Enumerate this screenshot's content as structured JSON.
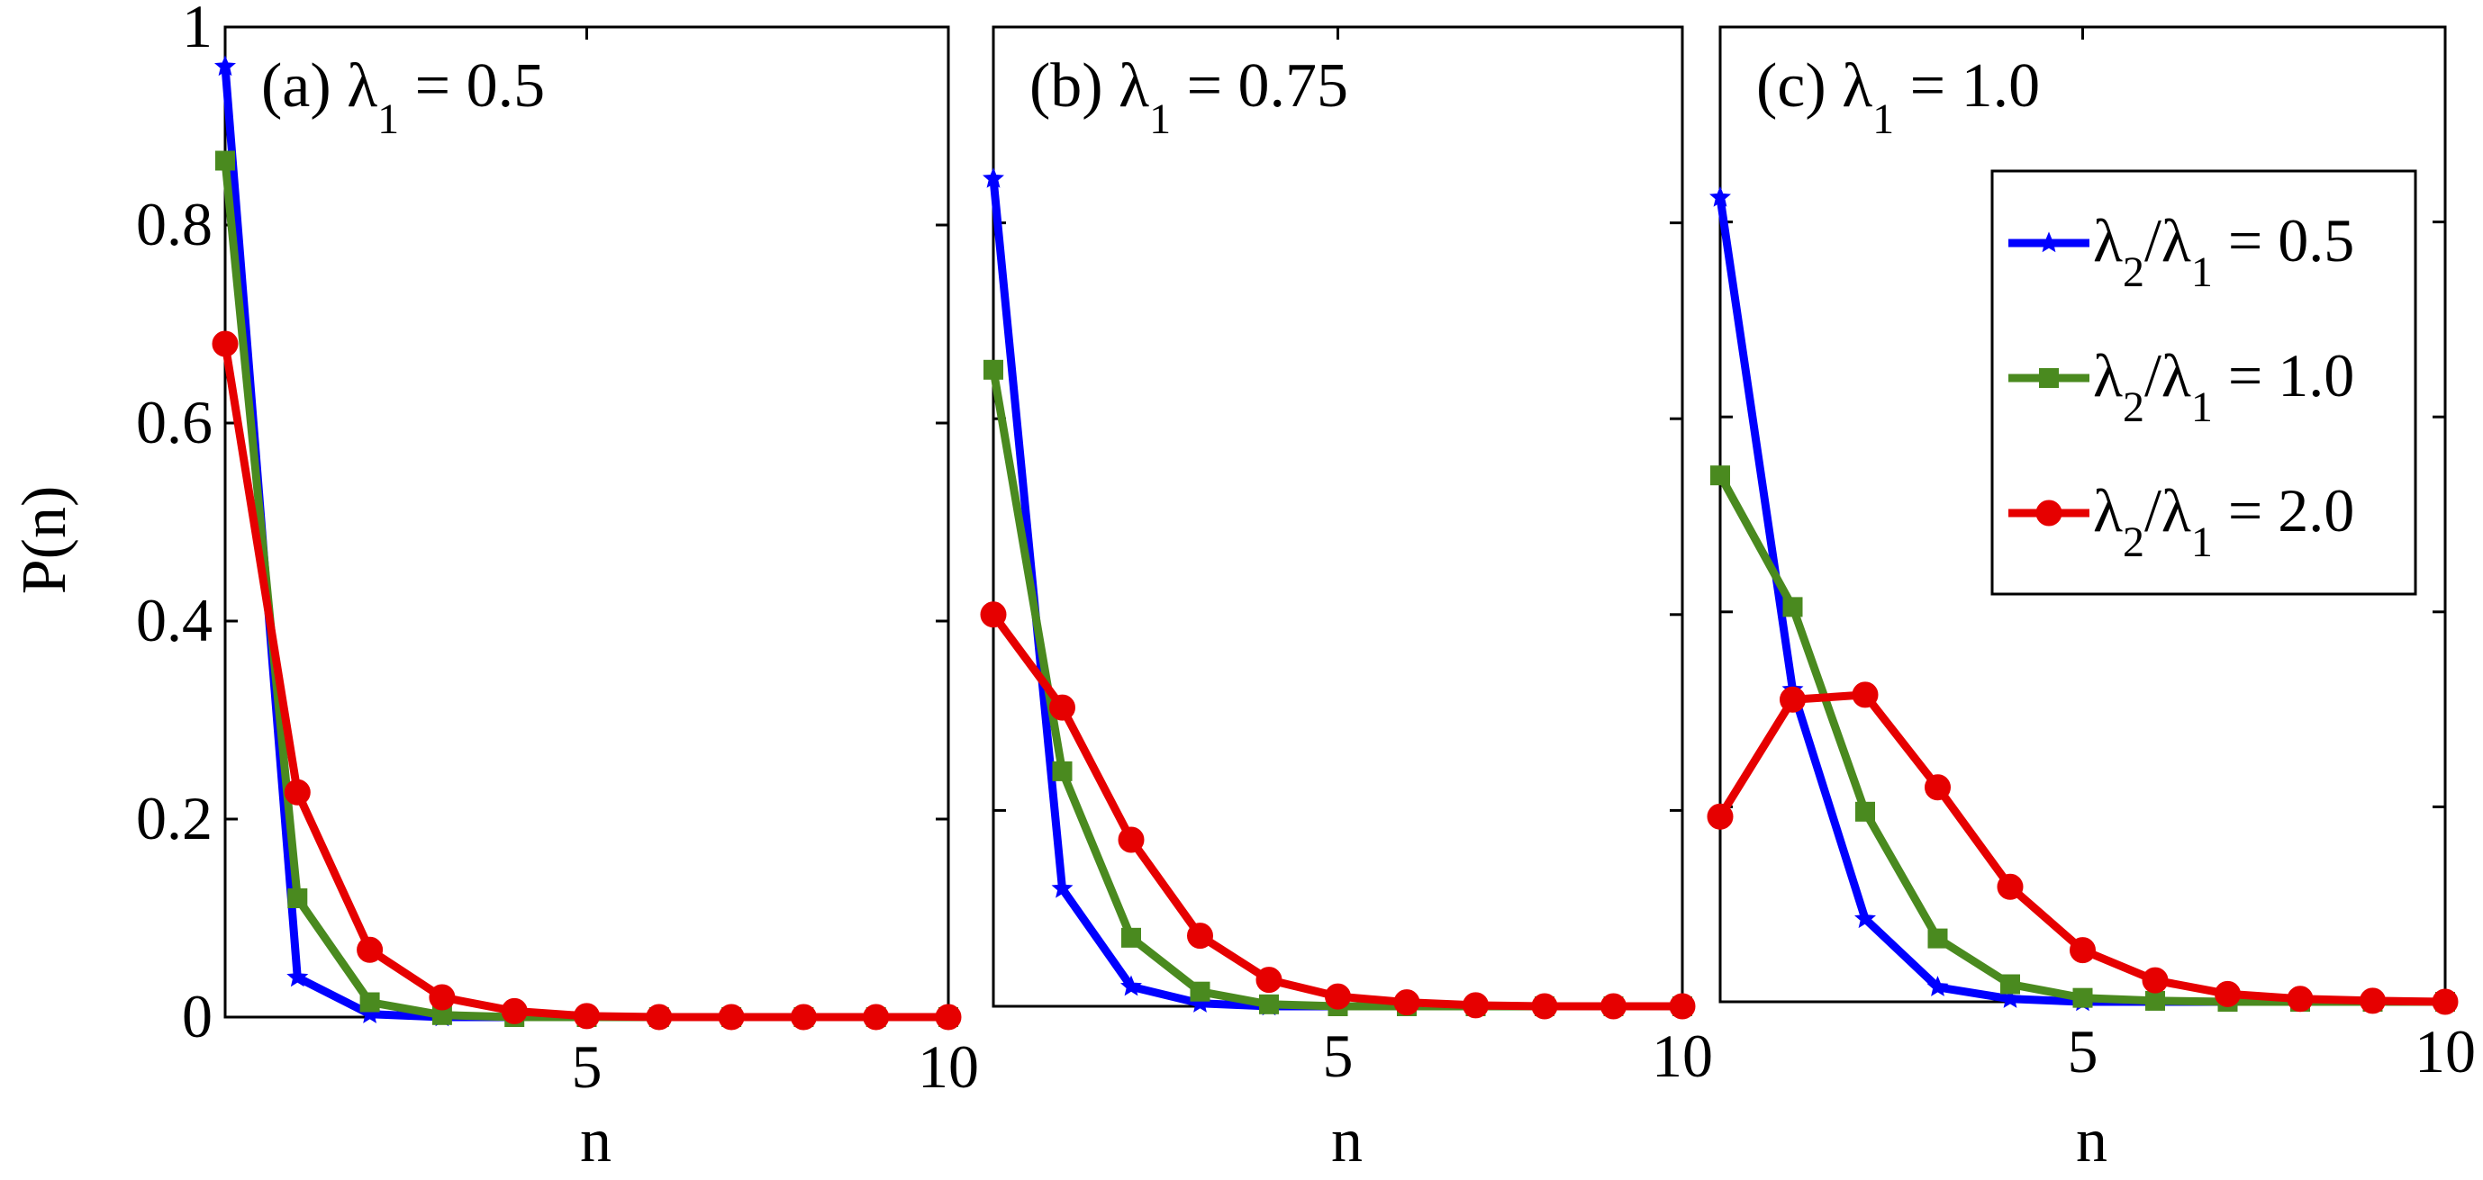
{
  "figure": {
    "ylabel": "P(n)",
    "xlabel": "n",
    "yticks": [
      0,
      0.2,
      0.4,
      0.6,
      0.8,
      1
    ],
    "ytick_labels": [
      "0",
      "0.2",
      "0.4",
      "0.6",
      "0.8",
      "1"
    ],
    "xticks": [
      5,
      10
    ],
    "xtick_labels": [
      "5",
      "10"
    ]
  },
  "legend": {
    "placement": "top-right of panel (c)",
    "entries": [
      {
        "prefix": "λ",
        "sub1": "2",
        "mid": "/λ",
        "sub2": "1",
        "suffix": " = 0.5"
      },
      {
        "prefix": "λ",
        "sub1": "2",
        "mid": "/λ",
        "sub2": "1",
        "suffix": " = 1.0"
      },
      {
        "prefix": "λ",
        "sub1": "2",
        "mid": "/λ",
        "sub2": "1",
        "suffix": " = 2.0"
      }
    ]
  },
  "colors": {
    "blue": "#0000ff",
    "green": "#4a8a1f",
    "red": "#e60000"
  },
  "chart_data": [
    {
      "type": "line",
      "title": "(a) λ1 = 0.5",
      "title_prefix": "(a) λ",
      "title_sub": "1",
      "title_suffix": " = 0.5",
      "xlabel": "n",
      "ylabel": "P(n)",
      "xlim": [
        0,
        10
      ],
      "ylim": [
        0,
        1
      ],
      "x": [
        0,
        1,
        2,
        3,
        4,
        5,
        6,
        7,
        8,
        9,
        10
      ],
      "series": [
        {
          "name": "λ2/λ1 = 0.5",
          "color": "blue",
          "marker": "star",
          "values": [
            0.96,
            0.04,
            0.003,
            0,
            0,
            0,
            0,
            0,
            0,
            0,
            0
          ]
        },
        {
          "name": "λ2/λ1 = 1.0",
          "color": "green",
          "marker": "square",
          "values": [
            0.865,
            0.12,
            0.015,
            0.002,
            0,
            0,
            0,
            0,
            0,
            0,
            0
          ]
        },
        {
          "name": "λ2/λ1 = 2.0",
          "color": "red",
          "marker": "circle",
          "values": [
            0.68,
            0.227,
            0.068,
            0.02,
            0.006,
            0.001,
            0,
            0,
            0,
            0,
            0
          ]
        }
      ]
    },
    {
      "type": "line",
      "title": "(b) λ1 = 0.75",
      "title_prefix": "(b) λ",
      "title_sub": "1",
      "title_suffix": " = 0.75",
      "xlabel": "n",
      "ylabel": "P(n)",
      "xlim": [
        0,
        10
      ],
      "ylim": [
        0,
        1
      ],
      "x": [
        0,
        1,
        2,
        3,
        4,
        5,
        6,
        7,
        8,
        9,
        10
      ],
      "series": [
        {
          "name": "λ2/λ1 = 0.5",
          "color": "blue",
          "marker": "star",
          "values": [
            0.845,
            0.12,
            0.02,
            0.003,
            0,
            0,
            0,
            0,
            0,
            0,
            0
          ]
        },
        {
          "name": "λ2/λ1 = 1.0",
          "color": "green",
          "marker": "square",
          "values": [
            0.65,
            0.24,
            0.07,
            0.015,
            0.002,
            0,
            0,
            0,
            0,
            0,
            0
          ]
        },
        {
          "name": "λ2/λ1 = 2.0",
          "color": "red",
          "marker": "circle",
          "values": [
            0.4,
            0.305,
            0.17,
            0.072,
            0.027,
            0.01,
            0.004,
            0.001,
            0,
            0,
            0
          ]
        }
      ]
    },
    {
      "type": "line",
      "title": "(c) λ1 = 1.0",
      "title_prefix": "(c) λ",
      "title_sub": "1",
      "title_suffix": " = 1.0",
      "xlabel": "n",
      "ylabel": "P(n)",
      "xlim": [
        0,
        10
      ],
      "ylim": [
        0,
        1
      ],
      "x": [
        0,
        1,
        2,
        3,
        4,
        5,
        6,
        7,
        8,
        9,
        10
      ],
      "series": [
        {
          "name": "λ2/λ1 = 0.5",
          "color": "blue",
          "marker": "star",
          "values": [
            0.825,
            0.32,
            0.085,
            0.015,
            0.003,
            0,
            0,
            0,
            0,
            0,
            0
          ]
        },
        {
          "name": "λ2/λ1 = 1.0",
          "color": "green",
          "marker": "square",
          "values": [
            0.54,
            0.405,
            0.195,
            0.065,
            0.018,
            0.004,
            0.001,
            0,
            0,
            0,
            0
          ]
        },
        {
          "name": "λ2/λ1 = 2.0",
          "color": "red",
          "marker": "circle",
          "values": [
            0.19,
            0.31,
            0.315,
            0.22,
            0.118,
            0.053,
            0.022,
            0.008,
            0.003,
            0.001,
            0
          ]
        }
      ]
    }
  ]
}
